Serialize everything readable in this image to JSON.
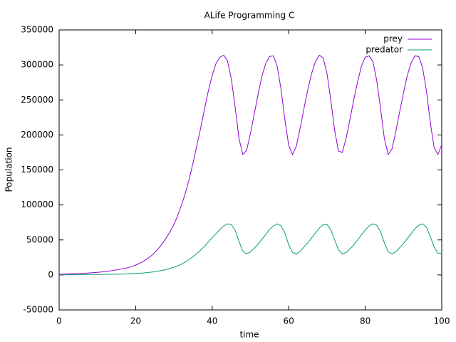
{
  "chart_data": {
    "type": "line",
    "title": "ALife Programming C",
    "xlabel": "time",
    "ylabel": "Population",
    "x": [
      0,
      1,
      2,
      3,
      4,
      5,
      6,
      7,
      8,
      9,
      10,
      11,
      12,
      13,
      14,
      15,
      16,
      17,
      18,
      19,
      20,
      21,
      22,
      23,
      24,
      25,
      26,
      27,
      28,
      29,
      30,
      31,
      32,
      33,
      34,
      35,
      36,
      37,
      38,
      39,
      40,
      41,
      42,
      43,
      44,
      45,
      46,
      47,
      48,
      49,
      50,
      51,
      52,
      53,
      54,
      55,
      56,
      57,
      58,
      59,
      60,
      61,
      62,
      63,
      64,
      65,
      66,
      67,
      68,
      69,
      70,
      71,
      72,
      73,
      74,
      75,
      76,
      77,
      78,
      79,
      80,
      81,
      82,
      83,
      84,
      85,
      86,
      87,
      88,
      89,
      90,
      91,
      92,
      93,
      94,
      95,
      96,
      97,
      98,
      99,
      100
    ],
    "series": [
      {
        "name": "prey",
        "color": "#9400d3",
        "values": [
          1000,
          1200,
          1400,
          1600,
          1800,
          2000,
          2300,
          2600,
          2900,
          3300,
          3700,
          4200,
          4800,
          5500,
          6300,
          7200,
          8200,
          9300,
          10500,
          12000,
          14000,
          16500,
          19500,
          23000,
          27000,
          32000,
          38000,
          45000,
          53000,
          62000,
          72000,
          85000,
          100000,
          117000,
          137000,
          160000,
          185000,
          210000,
          237000,
          263000,
          285000,
          302000,
          311000,
          314000,
          306000,
          280000,
          240000,
          195000,
          172000,
          178000,
          202000,
          230000,
          258000,
          284000,
          302000,
          312000,
          313000,
          298000,
          265000,
          222000,
          185000,
          172000,
          184000,
          210000,
          238000,
          265000,
          288000,
          305000,
          314000,
          310000,
          288000,
          250000,
          207000,
          177000,
          175000,
          195000,
          222000,
          250000,
          276000,
          298000,
          311000,
          313000,
          305000,
          278000,
          238000,
          195000,
          172000,
          180000,
          205000,
          233000,
          260000,
          285000,
          303000,
          313000,
          312000,
          296000,
          263000,
          218000,
          182000,
          172000,
          186000
        ]
      },
      {
        "name": "predator",
        "color": "#009e73",
        "values": [
          100,
          200,
          300,
          350,
          400,
          450,
          500,
          550,
          600,
          650,
          700,
          750,
          800,
          900,
          1000,
          1100,
          1200,
          1400,
          1600,
          1800,
          2100,
          2400,
          2800,
          3300,
          3900,
          4600,
          5500,
          6600,
          7900,
          9400,
          11000,
          13000,
          15500,
          18500,
          22000,
          26000,
          30500,
          35500,
          41000,
          47000,
          53000,
          59000,
          65000,
          70000,
          73000,
          72000,
          64000,
          48000,
          34000,
          30000,
          33000,
          38000,
          44000,
          51000,
          58000,
          65000,
          70000,
          73000,
          70000,
          60000,
          43000,
          32000,
          30000,
          34000,
          40000,
          46000,
          53000,
          60000,
          67000,
          72000,
          72000,
          65000,
          50000,
          36000,
          30000,
          32000,
          37000,
          43000,
          50000,
          57000,
          64000,
          70000,
          73000,
          71000,
          62000,
          46000,
          33000,
          30000,
          33000,
          39000,
          45000,
          52000,
          59000,
          66000,
          71000,
          73000,
          68000,
          55000,
          40000,
          31000,
          31000
        ]
      }
    ],
    "xlim": [
      0,
      100
    ],
    "xticks": [
      0,
      20,
      40,
      60,
      80,
      100
    ],
    "ylim": [
      -50000,
      350000
    ],
    "yticks": [
      -50000,
      0,
      50000,
      100000,
      150000,
      200000,
      250000,
      300000,
      350000
    ],
    "legend": "top-right",
    "grid": false
  }
}
